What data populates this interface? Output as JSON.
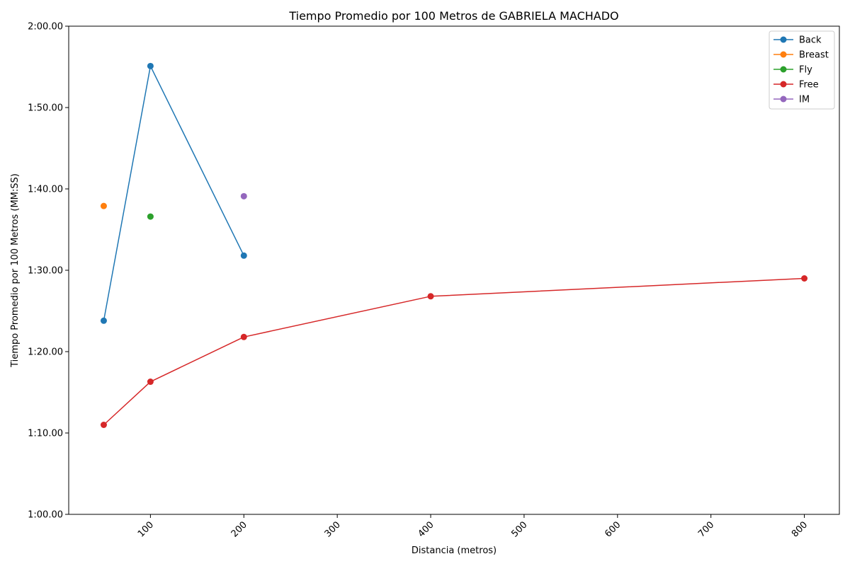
{
  "chart_data": {
    "type": "line",
    "title": "Tiempo Promedio por 100 Metros de GABRIELA MACHADO",
    "xlabel": "Distancia (metros)",
    "ylabel": "Tiempo Promedio por 100 Metros (MM:SS)",
    "xlim": [
      12.5,
      837.5
    ],
    "ylim": [
      60,
      120
    ],
    "x_ticks": [
      100,
      200,
      300,
      400,
      500,
      600,
      700,
      800
    ],
    "x_tick_labels": [
      "100",
      "200",
      "300",
      "400",
      "500",
      "600",
      "700",
      "800"
    ],
    "y_ticks": [
      60,
      70,
      80,
      90,
      100,
      110,
      120
    ],
    "y_tick_labels": [
      "1:00.00",
      "1:10.00",
      "1:20.00",
      "1:30.00",
      "1:40.00",
      "1:50.00",
      "2:00.00"
    ],
    "grid": false,
    "legend_position": "top-right",
    "series": [
      {
        "name": "Back",
        "color": "#1f77b4",
        "x": [
          50,
          100,
          200
        ],
        "y": [
          83.8,
          115.1,
          91.8
        ]
      },
      {
        "name": "Breast",
        "color": "#ff7f0e",
        "x": [
          50
        ],
        "y": [
          97.9
        ]
      },
      {
        "name": "Fly",
        "color": "#2ca02c",
        "x": [
          100
        ],
        "y": [
          96.6
        ]
      },
      {
        "name": "Free",
        "color": "#d62728",
        "x": [
          50,
          100,
          200,
          400,
          800
        ],
        "y": [
          71.0,
          76.3,
          81.8,
          86.8,
          89.0
        ]
      },
      {
        "name": "IM",
        "color": "#9467bd",
        "x": [
          200
        ],
        "y": [
          99.1
        ]
      }
    ]
  }
}
